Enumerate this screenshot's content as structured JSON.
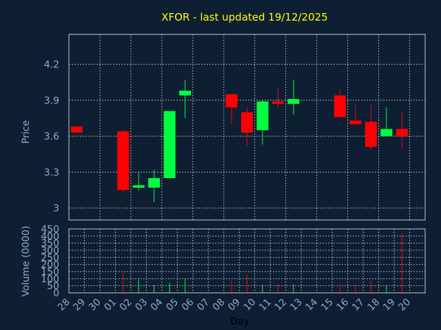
{
  "chart_data": {
    "type": "candlestick",
    "title": "XFOR - last updated 19/12/2025",
    "xlabel": "Day",
    "ylabel": "Price",
    "volume_label": "Volume (0000)",
    "x_ticks": [
      "28",
      "29",
      "30",
      "01",
      "02",
      "03",
      "04",
      "05",
      "06",
      "07",
      "08",
      "09",
      "10",
      "11",
      "12",
      "13",
      "14",
      "15",
      "16",
      "17",
      "18",
      "19",
      "20"
    ],
    "price_ticks": [
      "3",
      "3.3",
      "3.6",
      "3.9",
      "4.2"
    ],
    "price_range": [
      2.9,
      4.45
    ],
    "volume_ticks": [
      "0",
      "50",
      "100",
      "150",
      "200",
      "250",
      "300",
      "350",
      "400",
      "450"
    ],
    "volume_range": [
      0,
      450
    ],
    "grid": true,
    "colors": {
      "up": "#00ff40",
      "down": "#ff0000",
      "title": "#ffff00",
      "axis_text": "#8fa9c9",
      "background": "#0f1f33"
    },
    "candles": [
      {
        "day": "28",
        "open": 3.68,
        "high": 3.68,
        "low": 3.63,
        "close": 3.63,
        "volume": 0
      },
      {
        "day": "01",
        "open": 3.64,
        "high": 3.65,
        "low": 3.13,
        "close": 3.15,
        "volume": 140
      },
      {
        "day": "02",
        "open": 3.17,
        "high": 3.3,
        "low": 3.15,
        "close": 3.19,
        "volume": 95
      },
      {
        "day": "03",
        "open": 3.17,
        "high": 3.32,
        "low": 3.05,
        "close": 3.25,
        "volume": 55
      },
      {
        "day": "04",
        "open": 3.25,
        "high": 3.81,
        "low": 3.25,
        "close": 3.81,
        "volume": 70
      },
      {
        "day": "05",
        "open": 3.94,
        "high": 4.07,
        "low": 3.75,
        "close": 3.98,
        "volume": 100
      },
      {
        "day": "08",
        "open": 3.95,
        "high": 3.95,
        "low": 3.7,
        "close": 3.84,
        "volume": 90
      },
      {
        "day": "09",
        "open": 3.8,
        "high": 3.84,
        "low": 3.52,
        "close": 3.63,
        "volume": 130
      },
      {
        "day": "10",
        "open": 3.65,
        "high": 3.9,
        "low": 3.53,
        "close": 3.89,
        "volume": 60
      },
      {
        "day": "11",
        "open": 3.89,
        "high": 4.0,
        "low": 3.84,
        "close": 3.87,
        "volume": 65
      },
      {
        "day": "12",
        "open": 3.87,
        "high": 4.07,
        "low": 3.78,
        "close": 3.91,
        "volume": 60
      },
      {
        "day": "15",
        "open": 3.94,
        "high": 3.99,
        "low": 3.76,
        "close": 3.76,
        "volume": 60
      },
      {
        "day": "16",
        "open": 3.73,
        "high": 3.86,
        "low": 3.7,
        "close": 3.7,
        "volume": 55
      },
      {
        "day": "17",
        "open": 3.72,
        "high": 3.86,
        "low": 3.48,
        "close": 3.51,
        "volume": 85
      },
      {
        "day": "18",
        "open": 3.6,
        "high": 3.84,
        "low": 3.6,
        "close": 3.66,
        "volume": 55
      },
      {
        "day": "19",
        "open": 3.66,
        "high": 3.8,
        "low": 3.5,
        "close": 3.6,
        "volume": 420
      }
    ]
  }
}
